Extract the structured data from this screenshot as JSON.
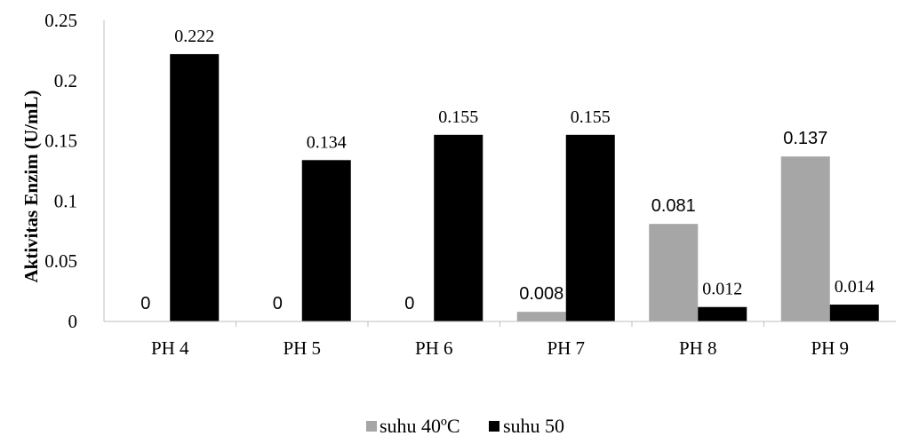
{
  "chart_data": {
    "type": "bar",
    "title": "",
    "xlabel": "",
    "ylabel": "Aktivitas Enzim (U/mL)",
    "ylim": [
      0,
      0.25
    ],
    "yticks": [
      "0",
      "0.05",
      "0.1",
      "0.15",
      "0.2",
      "0.25"
    ],
    "categories": [
      "PH 4",
      "PH 5",
      "PH 6",
      "PH 7",
      "PH 8",
      "PH 9"
    ],
    "series": [
      {
        "name": "suhu 40ºC",
        "color": "#a6a6a6",
        "values": [
          0,
          0,
          0,
          0.008,
          0.081,
          0.137
        ],
        "labels": [
          "0",
          "0",
          "0",
          "0.008",
          "0.081",
          "0.137"
        ]
      },
      {
        "name": "suhu 50",
        "color": "#000000",
        "values": [
          0.222,
          0.134,
          0.155,
          0.155,
          0.012,
          0.014
        ],
        "labels": [
          "0.222",
          "0.134",
          "0.155",
          "0.155",
          "0.012",
          "0.014"
        ]
      }
    ],
    "grid": false,
    "legend_position": "bottom"
  }
}
